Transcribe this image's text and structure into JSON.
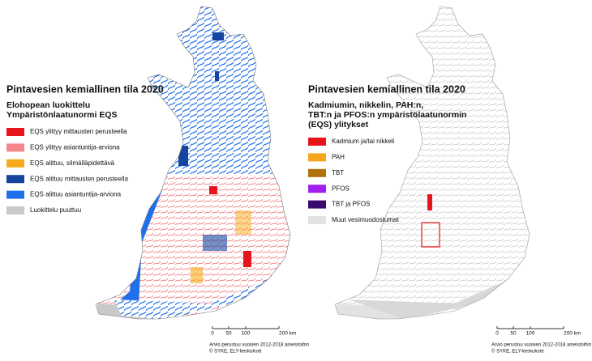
{
  "maps": [
    {
      "title": "Pintavesien kemiallinen tila 2020",
      "subtitle": [
        "Elohopean luokittelu",
        "Ympäristönlaatunormi EQS"
      ],
      "legend": [
        {
          "label": "EQS ylittyy mittausten perusteella",
          "color": "#e8141c"
        },
        {
          "label": "EQS ylittyy asiantuntija-arviona",
          "color": "#f3878a"
        },
        {
          "label": "EQS alittuu, silmälläpidettävä",
          "color": "#f7ab1c"
        },
        {
          "label": "EQS alittuu mittausten perusteella",
          "color": "#17449e"
        },
        {
          "label": "EQS alittuu asiantuntija-arviona",
          "color": "#1f70ea"
        },
        {
          "label": "Luokittelu puuttuu",
          "color": "#c9c9c9"
        }
      ],
      "scale": [
        "0",
        "50",
        "100",
        "200 km"
      ],
      "footer": [
        "Arvio perustuu vuosien 2012-2018 aineistoihin",
        "© SYKE, ELY-keskukset"
      ]
    },
    {
      "title": "Pintavesien kemiallinen tila 2020",
      "subtitle": [
        "Kadmiumin, nikkelin, PAH:n,",
        "TBT:n ja PFOS:n ympäristölaatunormin",
        "(EQS) ylitykset"
      ],
      "legend": [
        {
          "label": "Kadmium ja/tai nikkeli",
          "color": "#e8141c"
        },
        {
          "label": "PAH",
          "color": "#f7a51c"
        },
        {
          "label": "TBT",
          "color": "#b0700c"
        },
        {
          "label": "PFOS",
          "color": "#a21ff0"
        },
        {
          "label": "TBT ja PFOS",
          "color": "#3b0a6e"
        },
        {
          "label": "Muut vesimuodostumat",
          "color": "#e2e2e2"
        }
      ],
      "scale": [
        "0",
        "50",
        "100",
        "200 km"
      ],
      "footer": [
        "Arvio perustuu vuosien 2012-2018 aineistoihin",
        "© SYKE, ELY-keskukset"
      ]
    }
  ]
}
